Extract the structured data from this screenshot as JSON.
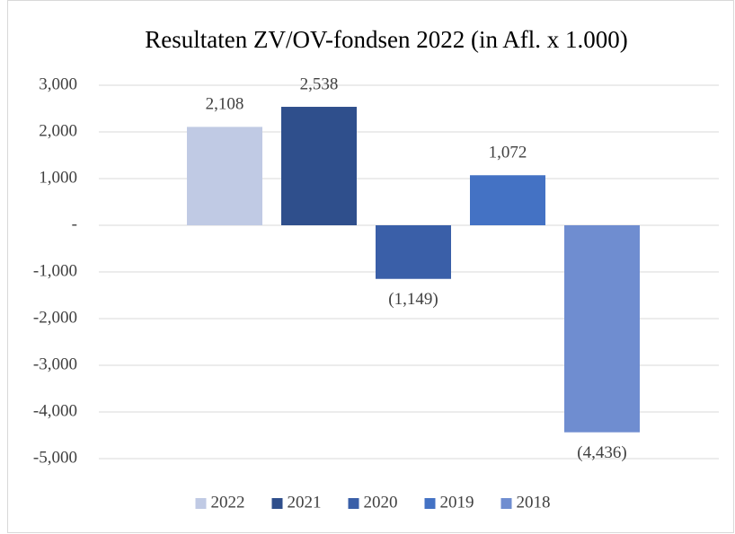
{
  "chart_data": {
    "type": "bar",
    "title": "Resultaten ZV/OV-fondsen 2022 (in Afl. x 1.000)",
    "series": [
      {
        "name": "2022",
        "color": "#c0cae4",
        "values": [
          2108
        ],
        "value_labels": [
          "2,108"
        ]
      },
      {
        "name": "2021",
        "color": "#2f4f8c",
        "values": [
          2538
        ],
        "value_labels": [
          "2,538"
        ]
      },
      {
        "name": "2020",
        "color": "#3a5fa8",
        "values": [
          -1149
        ],
        "value_labels": [
          "(1,149)"
        ]
      },
      {
        "name": "2019",
        "color": "#4472c4",
        "values": [
          1072
        ],
        "value_labels": [
          "1,072"
        ]
      },
      {
        "name": "2018",
        "color": "#6f8dd0",
        "values": [
          -4436
        ],
        "value_labels": [
          "(4,436)"
        ]
      }
    ],
    "ylim": [
      -5000,
      3000
    ],
    "yticks": [
      {
        "value": 3000,
        "label": "3,000"
      },
      {
        "value": 2000,
        "label": "2,000"
      },
      {
        "value": 1000,
        "label": "1,000"
      },
      {
        "value": 0,
        "label": "-"
      },
      {
        "value": -1000,
        "label": "-1,000"
      },
      {
        "value": -2000,
        "label": "-2,000"
      },
      {
        "value": -3000,
        "label": "-3,000"
      },
      {
        "value": -4000,
        "label": "-4,000"
      },
      {
        "value": -5000,
        "label": "-5,000"
      }
    ],
    "grid": true
  }
}
